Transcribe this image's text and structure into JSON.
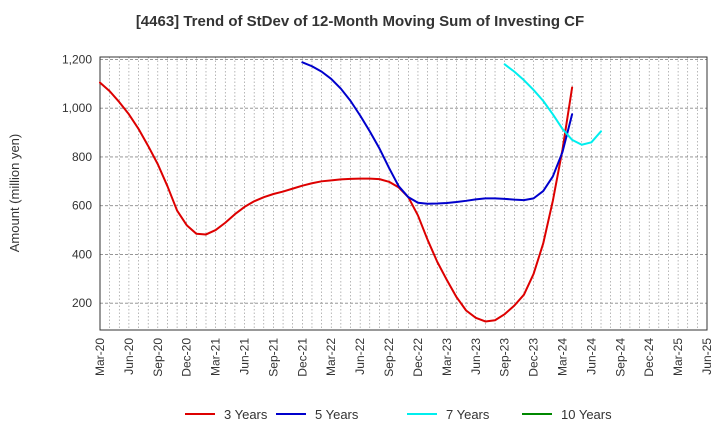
{
  "chart_data": {
    "type": "line",
    "title": "[4463]  Trend of StDev of 12-Month Moving Sum of Investing CF",
    "ylabel": "Amount (million yen)",
    "xlabel": "",
    "ylim": [
      90,
      1210
    ],
    "yticks": [
      200,
      400,
      600,
      800,
      "1,000",
      "1,200"
    ],
    "ytick_values": [
      200,
      400,
      600,
      800,
      1000,
      1200
    ],
    "x_tick_labels": [
      "Mar-20",
      "Jun-20",
      "Sep-20",
      "Dec-20",
      "Mar-21",
      "Jun-21",
      "Sep-21",
      "Dec-21",
      "Mar-22",
      "Jun-22",
      "Sep-22",
      "Dec-22",
      "Mar-23",
      "Jun-23",
      "Sep-23",
      "Dec-23",
      "Mar-24",
      "Jun-24",
      "Sep-24",
      "Dec-24",
      "Mar-25",
      "Jun-25"
    ],
    "grid": true,
    "legend_position": "bottom",
    "series": [
      {
        "name": "3 Years",
        "color": "#dd0000",
        "start_index": 0,
        "values": [
          1105,
          1070,
          1025,
          975,
          915,
          845,
          770,
          680,
          580,
          520,
          485,
          482,
          500,
          530,
          565,
          595,
          618,
          635,
          648,
          658,
          670,
          682,
          692,
          700,
          704,
          708,
          710,
          711,
          711,
          709,
          698,
          675,
          635,
          560,
          460,
          370,
          295,
          225,
          170,
          140,
          125,
          130,
          155,
          190,
          235,
          320,
          445,
          620,
          830,
          1085
        ]
      },
      {
        "name": "5 Years",
        "color": "#0000cc",
        "start_index": 21,
        "values": [
          1188,
          1172,
          1150,
          1120,
          1080,
          1030,
          970,
          905,
          835,
          755,
          680,
          635,
          612,
          608,
          609,
          611,
          615,
          620,
          626,
          630,
          630,
          628,
          625,
          623,
          630,
          660,
          720,
          820,
          975
        ]
      },
      {
        "name": "7 Years",
        "color": "#00eeee",
        "start_index": 42,
        "values": [
          1180,
          1150,
          1115,
          1075,
          1030,
          975,
          915,
          870,
          850,
          860,
          905
        ]
      },
      {
        "name": "10 Years",
        "color": "#008800",
        "start_index": 0,
        "values": []
      }
    ]
  }
}
